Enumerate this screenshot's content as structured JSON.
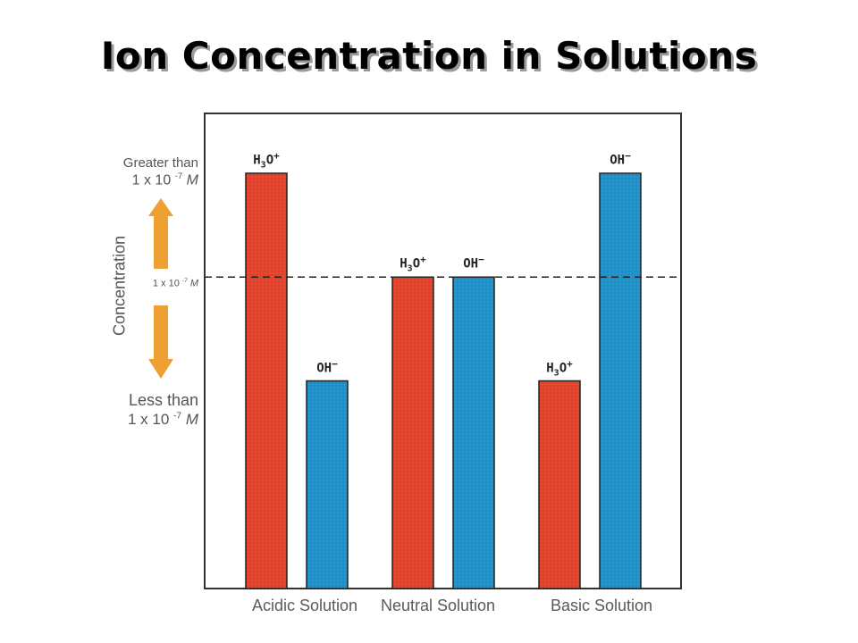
{
  "title": "Ion Concentration in Solutions",
  "y_axis": {
    "label": "Concentration",
    "greater": {
      "line1": "Greater than",
      "base": "1 x 10",
      "exp": "-7",
      "unit": "M"
    },
    "middle": {
      "base": "1 x 10",
      "exp": "-7",
      "unit": "M"
    },
    "less": {
      "line1": "Less than",
      "base": "1 x 10",
      "exp": "-7",
      "unit": "M"
    }
  },
  "colors": {
    "h3o": "#e2412a",
    "oh": "#1f8fc7",
    "arrow": "#eea033"
  },
  "chart_data": {
    "type": "bar",
    "title": "Ion Concentration in Solutions",
    "ylabel": "Concentration",
    "categories": [
      "Acidic Solution",
      "Neutral Solution",
      "Basic Solution"
    ],
    "series": [
      {
        "name": "H3O+",
        "values": [
          1.0,
          0.5,
          0.0
        ]
      },
      {
        "name": "OH-",
        "values": [
          0.0,
          0.5,
          1.0
        ]
      }
    ],
    "value_scale": "0 = less than 1 x 10^-7 M, 0.5 = 1 x 10^-7 M, 1 = greater than 1 x 10^-7 M",
    "ylim": [
      -1.0,
      1.0
    ],
    "reference_line": {
      "value": 0.5,
      "label": "1 x 10 -7 M",
      "style": "dashed"
    },
    "grid": false,
    "legend": "none"
  },
  "bar_labels": {
    "h3o": {
      "main": "H",
      "sub": "3",
      "rest": "O",
      "sup": "+"
    },
    "oh": {
      "main": "OH",
      "sup": "−"
    }
  }
}
